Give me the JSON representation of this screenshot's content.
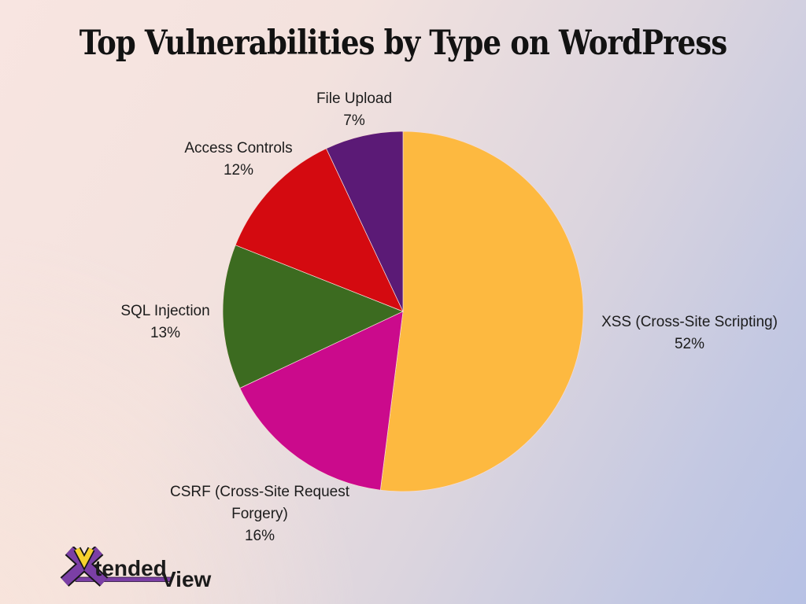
{
  "page": {
    "title": "Top Vulnerabilities by Type on WordPress"
  },
  "chart_data": {
    "type": "pie",
    "title": "Top Vulnerabilities by Type on WordPress",
    "direction": "clockwise",
    "start_angle_deg": 0,
    "legend_position": "none",
    "label_style": "outside labels with percentages",
    "slices": [
      {
        "label": "XSS (Cross-Site Scripting)",
        "value": 52,
        "pct_label": "52%",
        "color": "#FDB940"
      },
      {
        "label": "CSRF (Cross-Site Request Forgery)",
        "value": 16,
        "pct_label": "16%",
        "color": "#CB0A8C"
      },
      {
        "label": "SQL Injection",
        "value": 13,
        "pct_label": "13%",
        "color": "#3C6B20"
      },
      {
        "label": "Access Controls",
        "value": 12,
        "pct_label": "12%",
        "color": "#D40A10"
      },
      {
        "label": "File Upload",
        "value": 7,
        "pct_label": "7%",
        "color": "#5B1A76"
      }
    ],
    "slice_border_color": "#F4DCD6"
  },
  "brand": {
    "logo_x": "X",
    "logo_v": "V",
    "logo_text_1": "tended",
    "logo_text_2": "View",
    "purple": "#7B3FA5",
    "yellow": "#F6D22E",
    "text_color": "#1b1b1b"
  }
}
